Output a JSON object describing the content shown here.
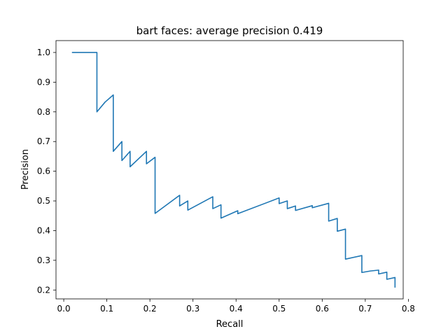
{
  "chart_data": {
    "type": "line",
    "title": "bart faces: average precision 0.419",
    "xlabel": "Recall",
    "ylabel": "Precision",
    "xlim": [
      -0.018,
      0.788
    ],
    "ylim": [
      0.17,
      1.04
    ],
    "xticks": [
      0.0,
      0.1,
      0.2,
      0.3,
      0.4,
      0.5,
      0.6,
      0.7,
      0.8
    ],
    "xtick_labels": [
      "0.0",
      "0.1",
      "0.2",
      "0.3",
      "0.4",
      "0.5",
      "0.6",
      "0.7",
      "0.8"
    ],
    "yticks": [
      0.2,
      0.3,
      0.4,
      0.5,
      0.6,
      0.7,
      0.8,
      0.9,
      1.0
    ],
    "ytick_labels": [
      "0.2",
      "0.3",
      "0.4",
      "0.5",
      "0.6",
      "0.7",
      "0.8",
      "0.9",
      "1.0"
    ],
    "grid": false,
    "color": "#1f77b4",
    "series": [
      {
        "x": [
          0.019,
          0.077,
          0.077,
          0.096,
          0.115,
          0.115,
          0.135,
          0.135,
          0.154,
          0.154,
          0.192,
          0.192,
          0.212,
          0.212,
          0.269,
          0.269,
          0.288,
          0.288,
          0.346,
          0.346,
          0.365,
          0.365,
          0.404,
          0.404,
          0.5,
          0.5,
          0.519,
          0.519,
          0.538,
          0.538,
          0.577,
          0.577,
          0.615,
          0.615,
          0.635,
          0.635,
          0.654,
          0.654,
          0.692,
          0.692,
          0.712,
          0.712,
          0.731,
          0.731,
          0.75,
          0.75,
          0.769,
          0.769
        ],
        "y": [
          1.0,
          1.0,
          0.8,
          0.833,
          0.857,
          0.667,
          0.7,
          0.636,
          0.667,
          0.615,
          0.667,
          0.625,
          0.647,
          0.458,
          0.519,
          0.483,
          0.5,
          0.469,
          0.514,
          0.474,
          0.487,
          0.442,
          0.467,
          0.457,
          0.51,
          0.491,
          0.5,
          0.474,
          0.483,
          0.468,
          0.484,
          0.477,
          0.492,
          0.432,
          0.441,
          0.398,
          0.405,
          0.304,
          0.316,
          0.259,
          0.264,
          0.264,
          0.267,
          0.254,
          0.26,
          0.236,
          0.242,
          0.208
        ]
      }
    ]
  }
}
